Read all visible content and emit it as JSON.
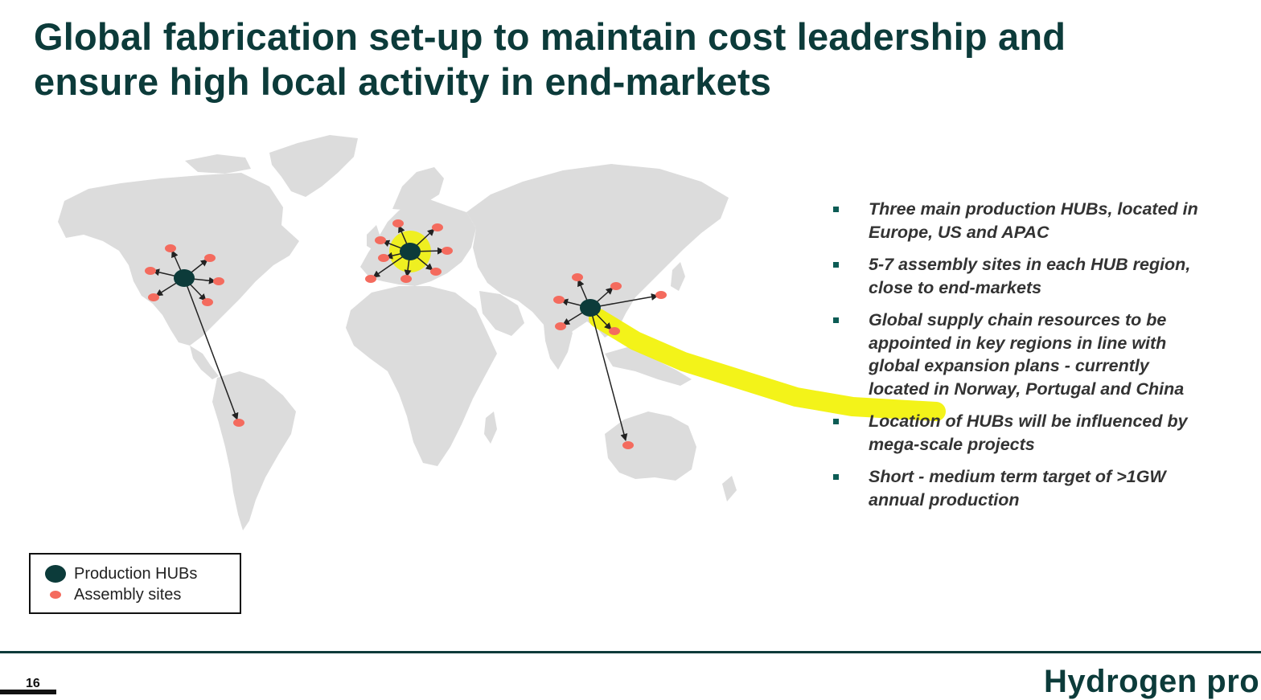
{
  "title": "Global fabrication set-up to maintain cost leadership and ensure high local activity in end-markets",
  "bullets": [
    "Three main production HUBs, located in Europe, US and APAC",
    "5-7 assembly sites in each HUB region, close to end-markets",
    "Global supply chain resources to be appointed in key regions in line with global expansion plans - currently located in Norway, Portugal and China",
    "Location of HUBs will be influenced by mega-scale projects",
    "Short - medium term target of >1GW annual production"
  ],
  "legend": {
    "hub_label": "Production HUBs",
    "site_label": "Assembly sites"
  },
  "footer": {
    "page_number": "16",
    "brand": "Hydrogen pro"
  },
  "colors": {
    "title": "#0c3b3a",
    "hub": "#0c3b3a",
    "assembly_site": "#f46b5e",
    "map_land": "#dcdcdc",
    "highlight": "#f2f200",
    "bullet_marker": "#0c5c55"
  },
  "icons": {
    "bullet": "square-bullet-icon",
    "hub": "dark-green-dot-icon",
    "assembly_site": "salmon-dot-icon",
    "logo": "hydrogenpro-logo"
  }
}
